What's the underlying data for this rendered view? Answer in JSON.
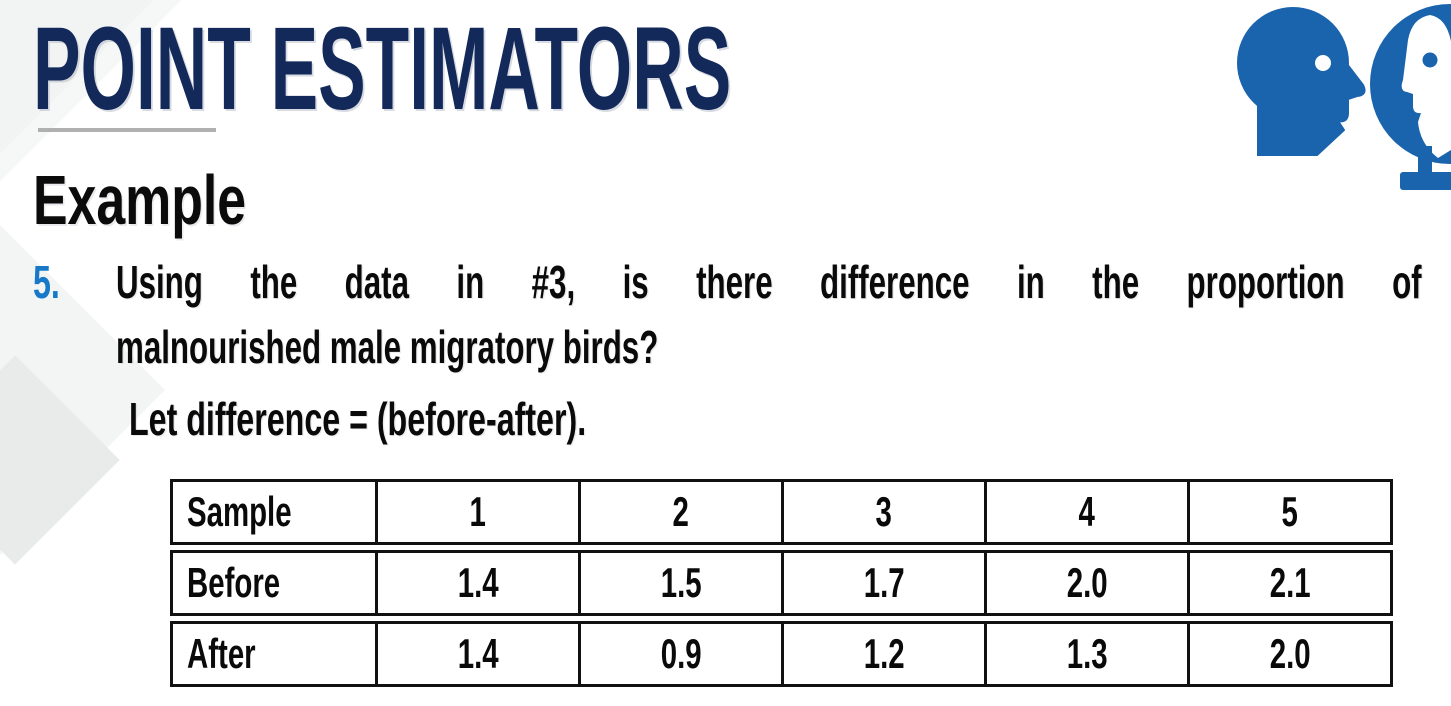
{
  "slide": {
    "title": "POINT ESTIMATORS",
    "section_heading": "Example",
    "item": {
      "number": "5.",
      "line1": "Using the data in #3, is there difference in the proportion of",
      "line2": "malnourished male migratory birds?",
      "note": "Let difference = (before-after)."
    },
    "icons": [
      "talking-head-icon",
      "head-silhouette-bust-icon"
    ],
    "colors": {
      "title_navy": "#12295a",
      "accent_blue": "#1779c8",
      "icon_blue": "#1a63ad",
      "underline_gray": "#b0b0b0",
      "table_border": "#111111"
    }
  },
  "chart_data": {
    "type": "table",
    "rows": [
      {
        "label": "Sample",
        "values": [
          "1",
          "2",
          "3",
          "4",
          "5"
        ]
      },
      {
        "label": "Before",
        "values": [
          "1.4",
          "1.5",
          "1.7",
          "2.0",
          "2.1"
        ]
      },
      {
        "label": "After",
        "values": [
          "1.4",
          "0.9",
          "1.2",
          "1.3",
          "2.0"
        ]
      }
    ]
  }
}
